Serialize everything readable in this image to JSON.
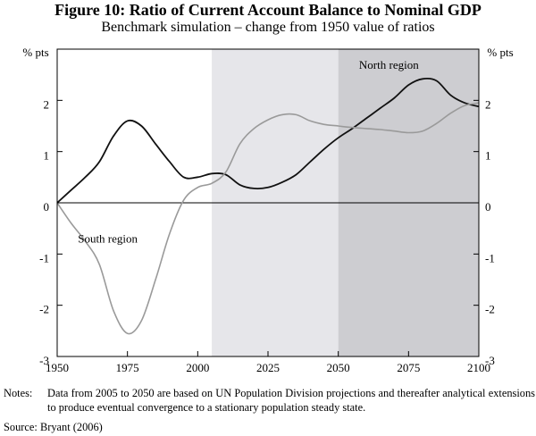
{
  "header": {
    "title": "Figure 10: Ratio of Current Account Balance to Nominal GDP",
    "subtitle": "Benchmark simulation – change from 1950 value of ratios"
  },
  "chart_data": {
    "type": "line",
    "title": "Figure 10: Ratio of Current Account Balance to Nominal GDP",
    "subtitle": "Benchmark simulation – change from 1950 value of ratios",
    "xlabel": "",
    "ylabel_left": "% pts",
    "ylabel_right": "% pts",
    "xlim": [
      1950,
      2100
    ],
    "ylim": [
      -3,
      3
    ],
    "x_ticks": [
      1950,
      1975,
      2000,
      2025,
      2050,
      2075,
      2100
    ],
    "y_ticks": [
      -3,
      -2,
      -1,
      0,
      1,
      2
    ],
    "y_tick_labels": [
      "-3",
      "-2",
      "-1",
      "0",
      "1",
      "2"
    ],
    "shaded_regions": [
      {
        "from": 2005,
        "to": 2050,
        "color": "#e6e6ea"
      },
      {
        "from": 2050,
        "to": 2100,
        "color": "#cdcdd1"
      }
    ],
    "series": [
      {
        "name": "North region",
        "color": "#111111",
        "x": [
          1950,
          1955,
          1960,
          1965,
          1970,
          1975,
          1980,
          1985,
          1990,
          1995,
          2000,
          2005,
          2010,
          2015,
          2020,
          2025,
          2030,
          2035,
          2040,
          2045,
          2050,
          2055,
          2060,
          2065,
          2070,
          2075,
          2080,
          2085,
          2090,
          2095,
          2100
        ],
        "y": [
          0.0,
          0.25,
          0.5,
          0.8,
          1.3,
          1.6,
          1.5,
          1.15,
          0.8,
          0.5,
          0.5,
          0.57,
          0.55,
          0.35,
          0.28,
          0.3,
          0.4,
          0.55,
          0.8,
          1.05,
          1.27,
          1.45,
          1.65,
          1.85,
          2.05,
          2.3,
          2.42,
          2.38,
          2.1,
          1.95,
          1.88
        ]
      },
      {
        "name": "South region",
        "color": "#9a9a9a",
        "x": [
          1950,
          1955,
          1960,
          1965,
          1970,
          1975,
          1980,
          1985,
          1990,
          1995,
          2000,
          2005,
          2010,
          2015,
          2020,
          2025,
          2030,
          2035,
          2040,
          2045,
          2050,
          2055,
          2060,
          2065,
          2070,
          2075,
          2080,
          2085,
          2090,
          2095,
          2100
        ],
        "y": [
          0.0,
          -0.4,
          -0.75,
          -1.2,
          -2.1,
          -2.55,
          -2.3,
          -1.5,
          -0.6,
          0.05,
          0.3,
          0.38,
          0.6,
          1.15,
          1.45,
          1.62,
          1.72,
          1.72,
          1.6,
          1.53,
          1.5,
          1.47,
          1.45,
          1.43,
          1.4,
          1.37,
          1.4,
          1.55,
          1.75,
          1.9,
          1.95
        ]
      }
    ],
    "annotations": [
      {
        "text": "North region",
        "x": 2068,
        "y": 2.62
      },
      {
        "text": "South region",
        "x": 1968,
        "y": -0.78
      }
    ]
  },
  "footer": {
    "notes_label": "Notes:",
    "notes_text": "Data from 2005 to 2050 are based on UN Population Division projections and thereafter analytical extensions to produce eventual convergence to a stationary population steady state.",
    "source": "Source: Bryant (2006)"
  }
}
